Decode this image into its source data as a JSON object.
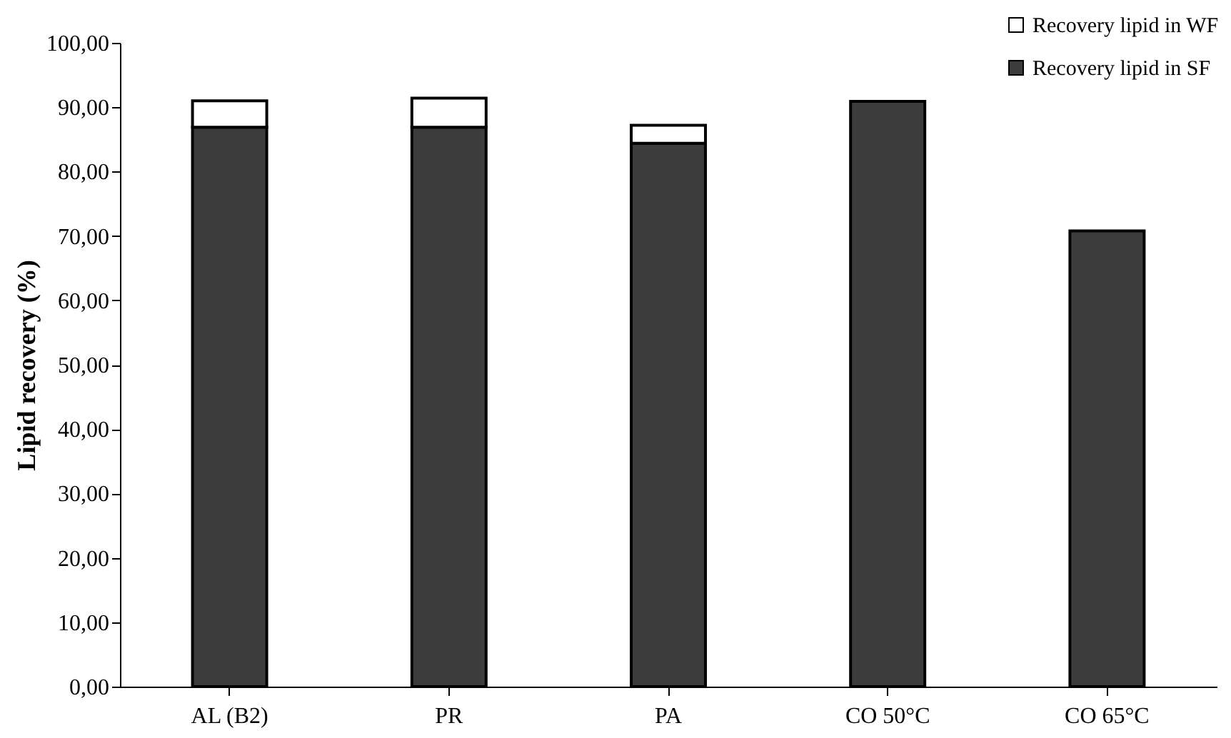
{
  "chart_data": {
    "type": "bar",
    "stacked": true,
    "ylabel": "Lipid recovery (%)",
    "categories": [
      "AL (B2)",
      "PR",
      "PA",
      "CO 50°C",
      "CO 65°C"
    ],
    "series": [
      {
        "name": "Recovery lipid in SF",
        "color": "#3c3c3c",
        "values": [
          86.9,
          86.9,
          84.4,
          90.9,
          70.8
        ]
      },
      {
        "name": "Recovery lipid in WF",
        "color": "#ffffff",
        "values": [
          4.1,
          4.5,
          2.8,
          0,
          0
        ]
      }
    ],
    "ylim": [
      0,
      100
    ],
    "yticks": [
      {
        "value": 0,
        "label": "0,00"
      },
      {
        "value": 10,
        "label": "10,00"
      },
      {
        "value": 20,
        "label": "20,00"
      },
      {
        "value": 30,
        "label": "30,00"
      },
      {
        "value": 40,
        "label": "40,00"
      },
      {
        "value": 50,
        "label": "50,00"
      },
      {
        "value": 60,
        "label": "60,00"
      },
      {
        "value": 70,
        "label": "70,00"
      },
      {
        "value": 80,
        "label": "80,00"
      },
      {
        "value": 90,
        "label": "90,00"
      },
      {
        "value": 100,
        "label": "100,00"
      }
    ],
    "grid": false,
    "legend": "top right"
  }
}
